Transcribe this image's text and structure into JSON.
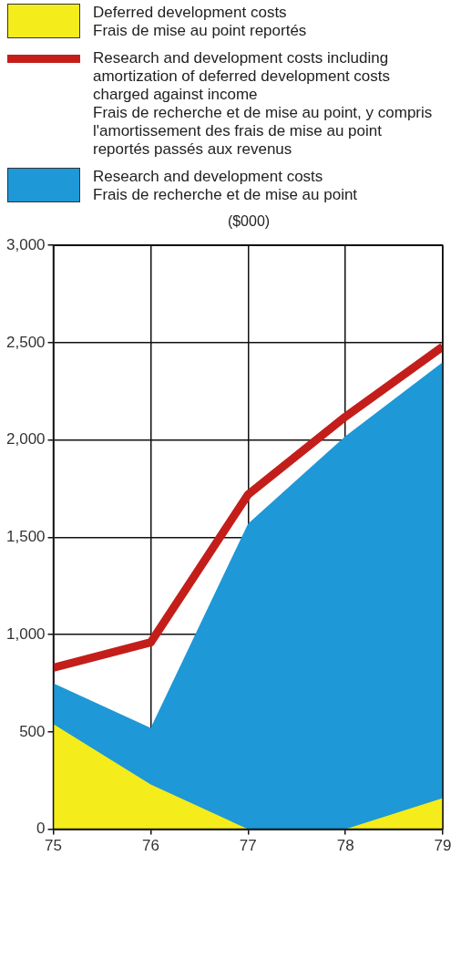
{
  "chart_data": {
    "type": "area",
    "ylabel": "($000)",
    "x": [
      75,
      76,
      77,
      78,
      79
    ],
    "xlim": [
      75,
      79
    ],
    "xticks": [
      75,
      76,
      77,
      78,
      79
    ],
    "ylim": [
      0,
      3000
    ],
    "yticks": [
      0,
      {
        "value": 500,
        "label": "500"
      },
      {
        "value": 1000,
        "label": "1,000"
      },
      {
        "value": 1500,
        "label": "1,500"
      },
      {
        "value": 2000,
        "label": "2,000"
      },
      {
        "value": 2500,
        "label": "2,500"
      },
      {
        "value": 3000,
        "label": "3,000"
      }
    ],
    "grid": true,
    "legend": "top",
    "series": [
      {
        "name": "Deferred development costs\nFrais de mise au point reportés",
        "type": "area",
        "color": "#f5ec1c",
        "values": [
          540,
          230,
          0,
          0,
          160
        ]
      },
      {
        "name": "Research and development costs including amortization of deferred development costs charged against income\nFrais de recherche et de mise au point, y compris l'amortissement des frais de mise au point reportés passés aux revenus",
        "type": "line",
        "color": "#c41e1a",
        "values": [
          830,
          960,
          1720,
          2120,
          2480
        ]
      },
      {
        "name": "Research and development costs\nFrais de recherche et de mise au point",
        "type": "area",
        "color": "#1e98d6",
        "values": [
          750,
          520,
          1570,
          2020,
          2400
        ]
      }
    ]
  }
}
